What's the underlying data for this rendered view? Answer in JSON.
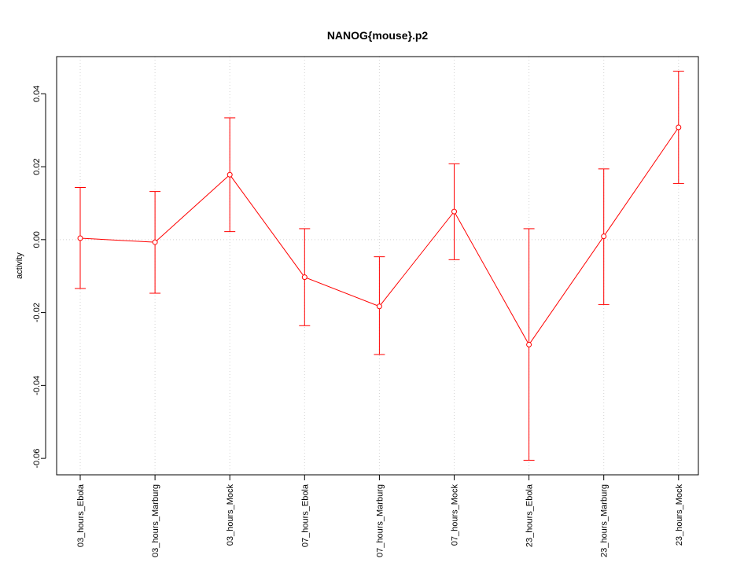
{
  "chart_data": {
    "type": "line",
    "title": "NANOG{mouse}.p2",
    "xlabel": "",
    "ylabel": "activity",
    "categories": [
      "03_hours_Ebola",
      "03_hours_Marburg",
      "03_hours_Mock",
      "07_hours_Ebola",
      "07_hours_Marburg",
      "07_hours_Mock",
      "23_hours_Ebola",
      "23_hours_Marburg",
      "23_hours_Mock"
    ],
    "series": [
      {
        "values": [
          0.0004,
          -0.0007,
          0.0178,
          -0.0103,
          -0.0183,
          0.0077,
          -0.0288,
          0.0009,
          0.0308
        ],
        "error_upper": [
          0.0143,
          0.0132,
          0.0334,
          0.003,
          -0.0047,
          0.0208,
          0.003,
          0.0194,
          0.0462
        ],
        "error_lower": [
          -0.0134,
          -0.0147,
          0.0022,
          -0.0236,
          -0.0315,
          -0.0055,
          -0.0605,
          -0.0178,
          0.0154
        ]
      }
    ],
    "yticks": [
      "-0.06",
      "-0.04",
      "-0.02",
      "0.00",
      "0.02",
      "0.04"
    ],
    "ytick_values": [
      -0.06,
      -0.04,
      -0.02,
      0.0,
      0.02,
      0.04
    ],
    "ylim": [
      -0.0645,
      0.0502
    ],
    "grid": true,
    "colors": {
      "series": "#ff0000",
      "grid": "#d3d3d3",
      "axis": "#000000"
    }
  }
}
